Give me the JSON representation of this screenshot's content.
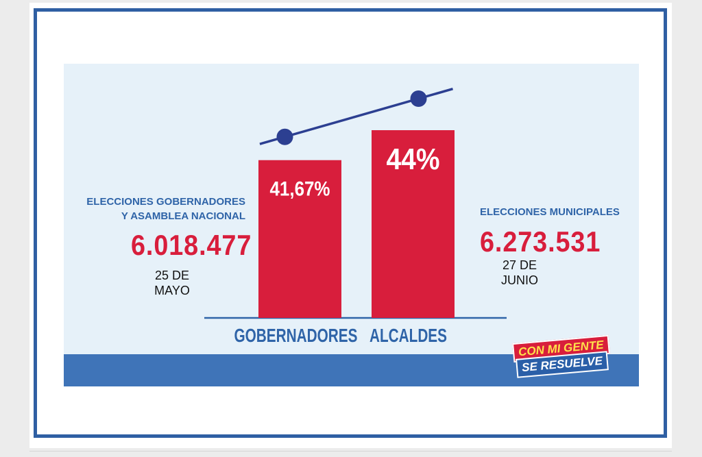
{
  "chart_data": {
    "type": "bar",
    "categories": [
      "GOBERNADORES",
      "ALCALDES"
    ],
    "values": [
      41.67,
      44
    ],
    "value_labels": [
      "41,67%",
      "44%"
    ],
    "trend_line": true
  },
  "left_info": {
    "title_line1": "ELECCIONES GOBERNADORES",
    "title_line2": "Y ASAMBLEA NACIONAL",
    "number": "6.018.477",
    "date_line1": "25 DE",
    "date_line2": "MAYO"
  },
  "right_info": {
    "title": "ELECCIONES MUNICIPALES",
    "number": "6.273.531",
    "date_line1": "27 DE",
    "date_line2": "JUNIO"
  },
  "logo": {
    "line1": "CON MI GENTE",
    "line2": "SE RESUELVE"
  },
  "colors": {
    "bar": "#d81e3c",
    "accent_blue": "#2f64a8",
    "trend_line": "#2c3f91",
    "panel_bg": "#e6f1f9"
  }
}
